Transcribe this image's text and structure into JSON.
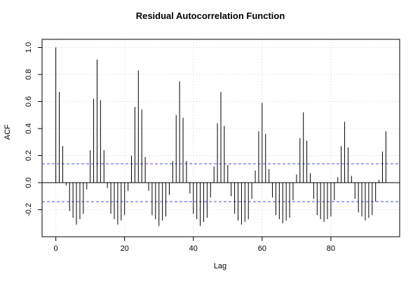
{
  "chart_data": {
    "type": "bar",
    "title": "Residual Autocorrelation Function",
    "xlabel": "Lag",
    "ylabel": "ACF",
    "xlim": [
      -4,
      100
    ],
    "ylim": [
      -0.4,
      1.06
    ],
    "x_ticks": [
      0,
      20,
      40,
      60,
      80
    ],
    "y_ticks": [
      -0.2,
      0.0,
      0.2,
      0.4,
      0.6,
      0.8,
      1.0
    ],
    "y_tick_labels": [
      "-0.2",
      "0.0",
      "0.2",
      "0.4",
      "0.6",
      "0.8",
      "1.0"
    ],
    "grid": true,
    "confidence_band": 0.14,
    "confidence_color": "#4a4aff",
    "lags": [
      0,
      1,
      2,
      3,
      4,
      5,
      6,
      7,
      8,
      9,
      10,
      11,
      12,
      13,
      14,
      15,
      16,
      17,
      18,
      19,
      20,
      21,
      22,
      23,
      24,
      25,
      26,
      27,
      28,
      29,
      30,
      31,
      32,
      33,
      34,
      35,
      36,
      37,
      38,
      39,
      40,
      41,
      42,
      43,
      44,
      45,
      46,
      47,
      48,
      49,
      50,
      51,
      52,
      53,
      54,
      55,
      56,
      57,
      58,
      59,
      60,
      61,
      62,
      63,
      64,
      65,
      66,
      67,
      68,
      69,
      70,
      71,
      72,
      73,
      74,
      75,
      76,
      77,
      78,
      79,
      80,
      81,
      82,
      83,
      84,
      85,
      86,
      87,
      88,
      89,
      90,
      91,
      92,
      93,
      94,
      95,
      96
    ],
    "values": [
      1.0,
      0.67,
      0.27,
      -0.02,
      -0.21,
      -0.26,
      -0.31,
      -0.27,
      -0.23,
      -0.05,
      0.24,
      0.62,
      0.91,
      0.61,
      0.24,
      -0.04,
      -0.23,
      -0.27,
      -0.31,
      -0.28,
      -0.24,
      -0.06,
      0.2,
      0.56,
      0.83,
      0.54,
      0.19,
      -0.06,
      -0.24,
      -0.27,
      -0.32,
      -0.28,
      -0.25,
      -0.09,
      0.16,
      0.5,
      0.75,
      0.48,
      0.16,
      -0.08,
      -0.23,
      -0.27,
      -0.32,
      -0.29,
      -0.26,
      -0.11,
      0.12,
      0.44,
      0.67,
      0.42,
      0.13,
      -0.1,
      -0.23,
      -0.28,
      -0.31,
      -0.29,
      -0.27,
      -0.12,
      0.09,
      0.38,
      0.59,
      0.36,
      0.1,
      -0.11,
      -0.24,
      -0.27,
      -0.3,
      -0.28,
      -0.26,
      -0.13,
      0.06,
      0.33,
      0.52,
      0.31,
      0.07,
      -0.12,
      -0.24,
      -0.27,
      -0.29,
      -0.27,
      -0.25,
      -0.13,
      0.04,
      0.27,
      0.45,
      0.26,
      0.05,
      -0.12,
      -0.22,
      -0.25,
      -0.28,
      -0.26,
      -0.24,
      -0.14,
      0.02,
      0.23,
      0.38
    ]
  }
}
